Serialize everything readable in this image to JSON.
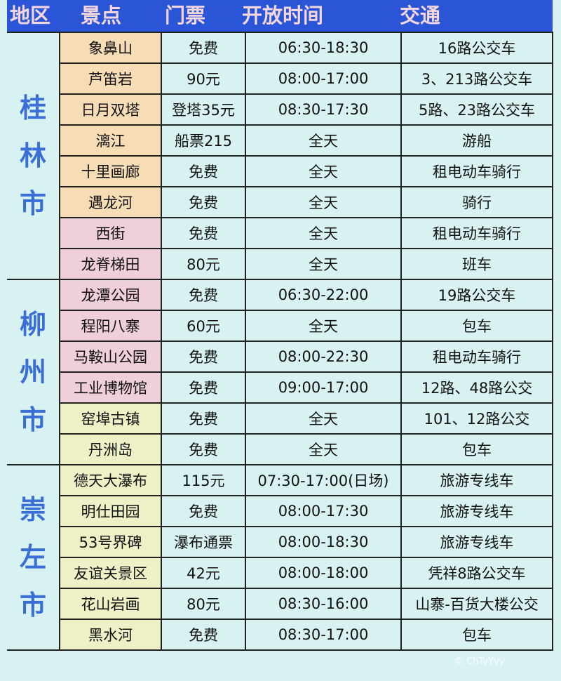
{
  "header": [
    "地区",
    "景点",
    "门票",
    "开放时间",
    "交通"
  ],
  "regions": [
    {
      "name": [
        "桂",
        "林",
        "市"
      ],
      "rows": [
        {
          "name": "象鼻山",
          "ticket": "免费",
          "hours": "06:30-18:30",
          "transport": "16路公交车",
          "color": "orange"
        },
        {
          "name": "芦笛岩",
          "ticket": "90元",
          "hours": "08:00-17:00",
          "transport": "3、213路公交车",
          "color": "orange"
        },
        {
          "name": "日月双塔",
          "ticket": "登塔35元",
          "hours": "08:30-17:30",
          "transport": "5路、23路公交车",
          "color": "orange"
        },
        {
          "name": "漓江",
          "ticket": "船票215",
          "hours": "全天",
          "transport": "游船",
          "color": "orange"
        },
        {
          "name": "十里画廊",
          "ticket": "免费",
          "hours": "全天",
          "transport": "租电动车骑行",
          "color": "orange"
        },
        {
          "name": "遇龙河",
          "ticket": "免费",
          "hours": "全天",
          "transport": "骑行",
          "color": "orange"
        },
        {
          "name": "西街",
          "ticket": "免费",
          "hours": "全天",
          "transport": "租电动车骑行",
          "color": "pink"
        },
        {
          "name": "龙脊梯田",
          "ticket": "80元",
          "hours": "全天",
          "transport": "班车",
          "color": "pink"
        }
      ]
    },
    {
      "name": [
        "柳",
        "州",
        "市"
      ],
      "rows": [
        {
          "name": "龙潭公园",
          "ticket": "免费",
          "hours": "06:30-22:00",
          "transport": "19路公交车",
          "color": "pink"
        },
        {
          "name": "程阳八寨",
          "ticket": "60元",
          "hours": "全天",
          "transport": "包车",
          "color": "pink"
        },
        {
          "name": "马鞍山公园",
          "ticket": "免费",
          "hours": "08:00-22:30",
          "transport": "租电动车骑行",
          "color": "pink"
        },
        {
          "name": "工业博物馆",
          "ticket": "免费",
          "hours": "09:00-17:00",
          "transport": "12路、48路公交",
          "color": "pink"
        },
        {
          "name": "窑埠古镇",
          "ticket": "免费",
          "hours": "全天",
          "transport": "101、12路公交",
          "color": "yellow"
        },
        {
          "name": "丹洲岛",
          "ticket": "免费",
          "hours": "全天",
          "transport": "包车",
          "color": "yellow"
        }
      ]
    },
    {
      "name": [
        "崇",
        "左",
        "市"
      ],
      "rows": [
        {
          "name": "德天大瀑布",
          "ticket": "115元",
          "hours": "07:30-17:00(日场)",
          "transport": "旅游专线车",
          "color": "yellow"
        },
        {
          "name": "明仕田园",
          "ticket": "免费",
          "hours": "08:00-17:30",
          "transport": "旅游专线车",
          "color": "yellow"
        },
        {
          "name": "53号界碑",
          "ticket": "瀑布通票",
          "hours": "08:00-18:30",
          "transport": "旅游专线车",
          "color": "yellow"
        },
        {
          "name": "友谊关景区",
          "ticket": "42元",
          "hours": "08:00-18:00",
          "transport": "凭祥8路公交车",
          "color": "yellow"
        },
        {
          "name": "花山岩画",
          "ticket": "80元",
          "hours": "08:30-16:00",
          "transport": "山寨-百货大楼公交",
          "color": "yellow"
        },
        {
          "name": "黑水河",
          "ticket": "免费",
          "hours": "08:30-17:00",
          "transport": "包车",
          "color": "yellow"
        }
      ]
    }
  ],
  "watermark": "© ChTyYyy"
}
